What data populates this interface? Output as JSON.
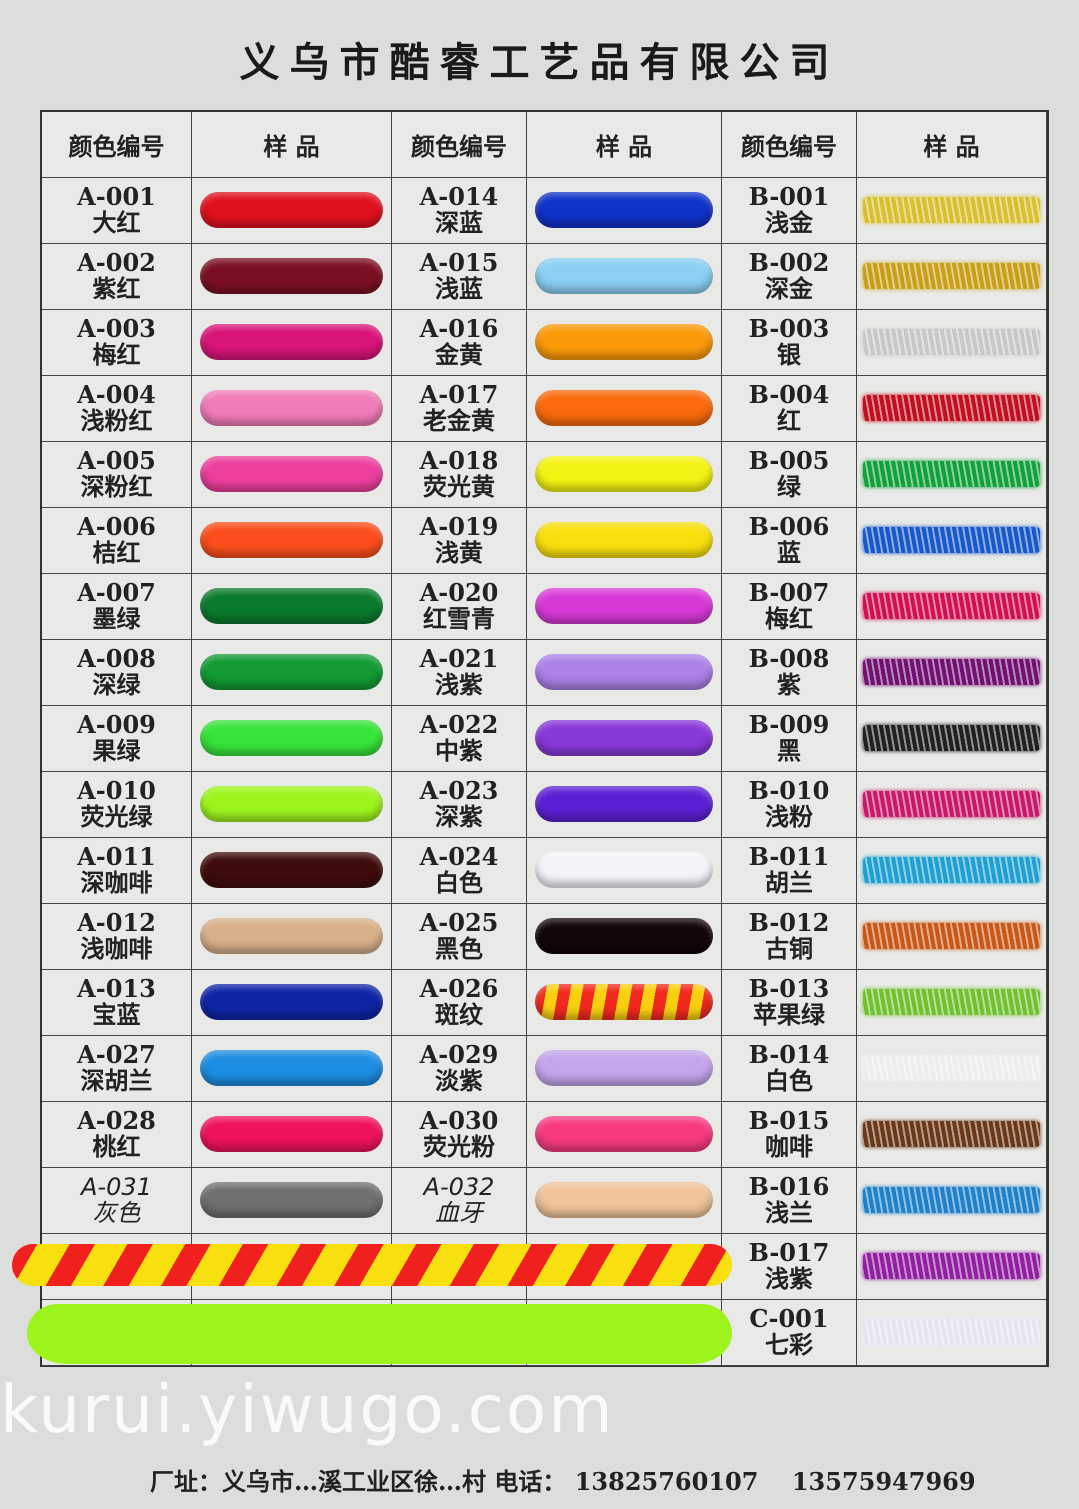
{
  "title": "义乌市酷睿工艺品有限公司",
  "headers": {
    "code": "颜色编号",
    "sample": "样 品"
  },
  "left": [
    {
      "code": "A-001",
      "name": "大红",
      "color": "#e0101e"
    },
    {
      "code": "A-002",
      "name": "紫红",
      "color": "#7a0f22"
    },
    {
      "code": "A-003",
      "name": "梅红",
      "color": "#d81478"
    },
    {
      "code": "A-004",
      "name": "浅粉红",
      "color": "#f27cb8"
    },
    {
      "code": "A-005",
      "name": "深粉红",
      "color": "#ee3f9e"
    },
    {
      "code": "A-006",
      "name": "桔红",
      "color": "#fb4e1c"
    },
    {
      "code": "A-007",
      "name": "墨绿",
      "color": "#0b7a2e"
    },
    {
      "code": "A-008",
      "name": "深绿",
      "color": "#129a34"
    },
    {
      "code": "A-009",
      "name": "果绿",
      "color": "#38e43a"
    },
    {
      "code": "A-010",
      "name": "荧光绿",
      "color": "#9ef51e"
    },
    {
      "code": "A-011",
      "name": "深咖啡",
      "color": "#3e0c0a"
    },
    {
      "code": "A-012",
      "name": "浅咖啡",
      "color": "#d8b08a"
    },
    {
      "code": "A-013",
      "name": "宝蓝",
      "color": "#0f23a6"
    },
    {
      "code": "A-027",
      "name": "深胡兰",
      "color": "#1d8ee2"
    },
    {
      "code": "A-028",
      "name": "桃红",
      "color": "#f0125e"
    },
    {
      "code": "A-031",
      "name": "灰色",
      "color": "#707070",
      "handwritten": true
    }
  ],
  "middle": [
    {
      "code": "A-014",
      "name": "深蓝",
      "color": "#1032c8"
    },
    {
      "code": "A-015",
      "name": "浅蓝",
      "color": "#8cd0f4"
    },
    {
      "code": "A-016",
      "name": "金黄",
      "color": "#fb9a08"
    },
    {
      "code": "A-017",
      "name": "老金黄",
      "color": "#fb6a0c"
    },
    {
      "code": "A-018",
      "name": "荧光黄",
      "color": "#f4f414"
    },
    {
      "code": "A-019",
      "name": "浅黄",
      "color": "#f8e00e"
    },
    {
      "code": "A-020",
      "name": "红雪青",
      "color": "#d83ad8"
    },
    {
      "code": "A-021",
      "name": "浅紫",
      "color": "#ab82e6"
    },
    {
      "code": "A-022",
      "name": "中紫",
      "color": "#8738d8"
    },
    {
      "code": "A-023",
      "name": "深紫",
      "color": "#5c20d4"
    },
    {
      "code": "A-024",
      "name": "白色",
      "color": "#f4f4f8"
    },
    {
      "code": "A-025",
      "name": "黑色",
      "color": "#120608"
    },
    {
      "code": "A-026",
      "name": "斑纹",
      "color": "#f0281e",
      "stripe": "#f8d010"
    },
    {
      "code": "A-029",
      "name": "淡紫",
      "color": "#c4a6ec"
    },
    {
      "code": "A-030",
      "name": "荧光粉",
      "color": "#f83a80"
    },
    {
      "code": "A-032",
      "name": "血牙",
      "color": "#f0c49a",
      "handwritten": true
    }
  ],
  "right": [
    {
      "code": "B-001",
      "name": "浅金",
      "color": "#d8c030"
    },
    {
      "code": "B-002",
      "name": "深金",
      "color": "#c8a018"
    },
    {
      "code": "B-003",
      "name": "银",
      "color": "#c8c8c8"
    },
    {
      "code": "B-004",
      "name": "红",
      "color": "#c01020"
    },
    {
      "code": "B-005",
      "name": "绿",
      "color": "#12a03a"
    },
    {
      "code": "B-006",
      "name": "蓝",
      "color": "#1858c8"
    },
    {
      "code": "B-007",
      "name": "梅红",
      "color": "#d01050"
    },
    {
      "code": "B-008",
      "name": "紫",
      "color": "#701070"
    },
    {
      "code": "B-009",
      "name": "黑",
      "color": "#202020"
    },
    {
      "code": "B-010",
      "name": "浅粉",
      "color": "#c81868"
    },
    {
      "code": "B-011",
      "name": "胡兰",
      "color": "#20a0d0"
    },
    {
      "code": "B-012",
      "name": "古铜",
      "color": "#c85818"
    },
    {
      "code": "B-013",
      "name": "苹果绿",
      "color": "#70c030"
    },
    {
      "code": "B-014",
      "name": "白色",
      "color": "#eeeeee"
    },
    {
      "code": "B-015",
      "name": "咖啡",
      "color": "#6a3818"
    },
    {
      "code": "B-016",
      "name": "浅兰",
      "color": "#2080c8"
    },
    {
      "code": "B-017",
      "name": "浅紫",
      "color": "#9020a0"
    },
    {
      "code": "C-001",
      "name": "七彩",
      "color": "#e8e4f0"
    }
  ],
  "footer": {
    "address": "厂址：义乌市…溪工业区徐…村",
    "phone_label": "电话：",
    "phone1": "13825760107",
    "phone2": "13575947969"
  },
  "watermark": "kurui.yiwugo.com"
}
